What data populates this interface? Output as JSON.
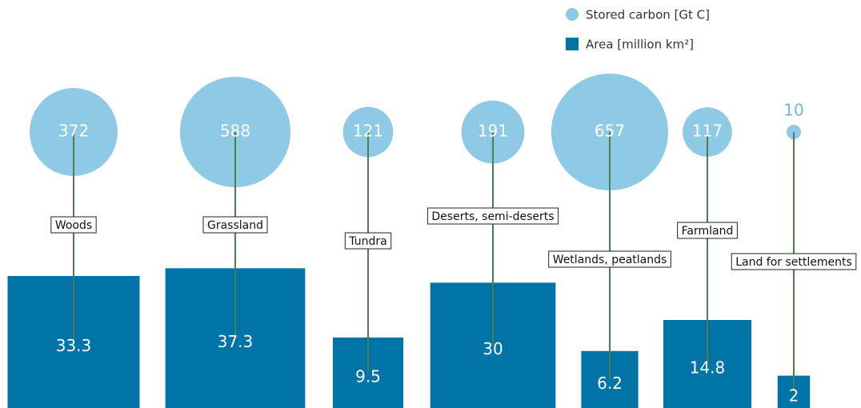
{
  "chart_data": {
    "type": "bubble",
    "categories": [
      "Woods",
      "Grassland",
      "Tundra",
      "Deserts, semi-deserts",
      "Wetlands, peatlands",
      "Farmland",
      "Land for settlements"
    ],
    "series": [
      {
        "name": "Stored carbon [Gt C]",
        "color": "#8ecae6",
        "values": [
          372,
          588,
          121,
          191,
          657,
          117,
          10
        ]
      },
      {
        "name": "Area [million km²]",
        "color": "#0074a6",
        "values": [
          33.3,
          37.3,
          9.5,
          30,
          6.2,
          14.8,
          2
        ]
      }
    ]
  }
}
